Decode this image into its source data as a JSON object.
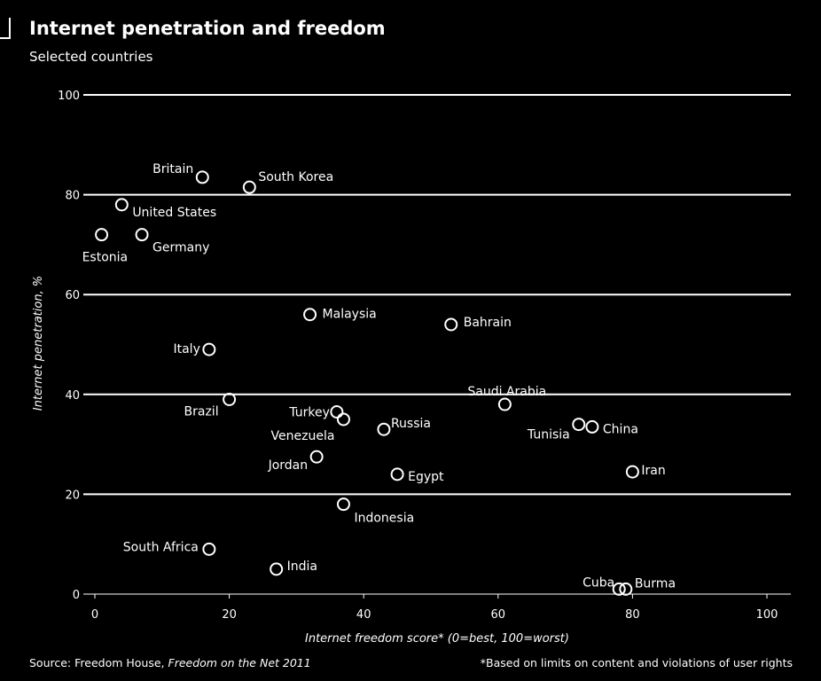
{
  "header": {
    "title": "Internet penetration and freedom",
    "subtitle": "Selected countries"
  },
  "footer": {
    "source_prefix": "Source: Freedom House, ",
    "source_italic": "Freedom on the Net 2011",
    "note": "*Based on limits on content and violations of user rights"
  },
  "chart_data": {
    "type": "scatter",
    "xlabel": "Internet freedom score* (0=best, 100=worst)",
    "ylabel": "Internet penetration, %",
    "xlim": [
      0,
      100
    ],
    "ylim": [
      0,
      100
    ],
    "xticks": [
      0,
      20,
      40,
      60,
      80,
      100
    ],
    "yticks": [
      0,
      20,
      40,
      60,
      80,
      100
    ],
    "grid": "horizontal",
    "points": [
      {
        "label": "Britain",
        "x": 16,
        "y": 83.5
      },
      {
        "label": "South Korea",
        "x": 23,
        "y": 81.5
      },
      {
        "label": "United States",
        "x": 4,
        "y": 78
      },
      {
        "label": "Estonia",
        "x": 1,
        "y": 72
      },
      {
        "label": "Germany",
        "x": 7,
        "y": 72
      },
      {
        "label": "Malaysia",
        "x": 32,
        "y": 56
      },
      {
        "label": "Bahrain",
        "x": 53,
        "y": 54
      },
      {
        "label": "Italy",
        "x": 17,
        "y": 49
      },
      {
        "label": "Saudi Arabia",
        "x": 61,
        "y": 38
      },
      {
        "label": "Brazil",
        "x": 20,
        "y": 39
      },
      {
        "label": "Turkey",
        "x": 36,
        "y": 36.5
      },
      {
        "label": "Venezuela",
        "x": 37,
        "y": 35
      },
      {
        "label": "Russia",
        "x": 43,
        "y": 33
      },
      {
        "label": "Tunisia",
        "x": 72,
        "y": 34
      },
      {
        "label": "China",
        "x": 74,
        "y": 33.5
      },
      {
        "label": "Jordan",
        "x": 33,
        "y": 27.5
      },
      {
        "label": "Egypt",
        "x": 45,
        "y": 24
      },
      {
        "label": "Iran",
        "x": 80,
        "y": 24.5
      },
      {
        "label": "Indonesia",
        "x": 37,
        "y": 18
      },
      {
        "label": "South Africa",
        "x": 17,
        "y": 9
      },
      {
        "label": "India",
        "x": 27,
        "y": 5
      },
      {
        "label": "Cuba",
        "x": 78,
        "y": 1
      },
      {
        "label": "Burma",
        "x": 79,
        "y": 1
      }
    ]
  }
}
